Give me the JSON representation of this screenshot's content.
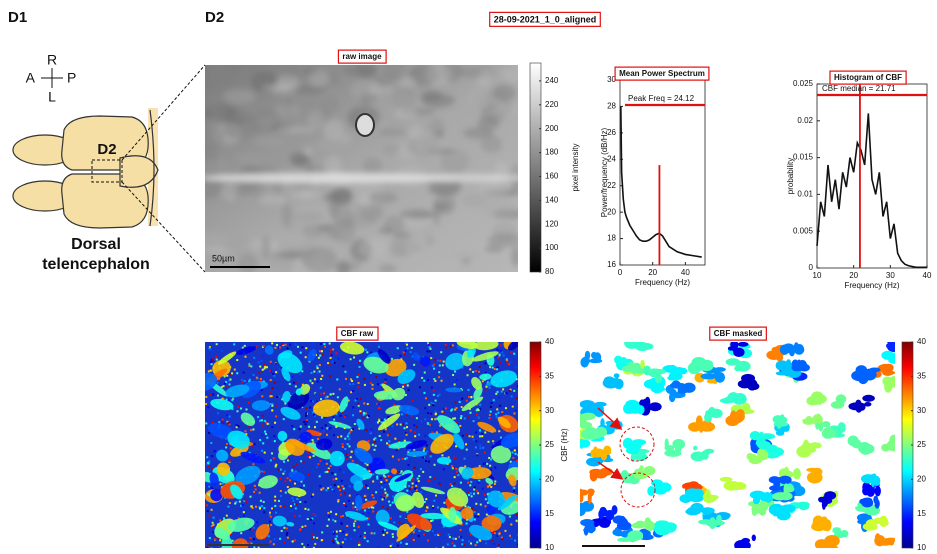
{
  "panel_labels": [
    "D1",
    "D2"
  ],
  "figure_title": "28-09-2021_1_0_aligned",
  "compass": {
    "top": "R",
    "left": "A",
    "right": "P",
    "bottom": "L"
  },
  "brain": {
    "region_label": "D2",
    "caption": [
      "Dorsal",
      "telencephalon"
    ]
  },
  "images": {
    "raw": {
      "title": "raw image",
      "scale_bar": "50µm",
      "colorbar": {
        "label": "pixel intensity",
        "lim": [
          80,
          255
        ],
        "ticks": [
          80,
          100,
          120,
          140,
          160,
          180,
          200,
          220,
          240
        ]
      }
    },
    "cbf_raw": {
      "title": "CBF raw",
      "colorbar": {
        "label": "CBF (Hz)",
        "lim": [
          10,
          40
        ],
        "ticks": [
          10,
          15,
          20,
          25,
          30,
          35,
          40
        ]
      }
    },
    "cbf_masked": {
      "title": "CBF masked",
      "colorbar": {
        "lim": [
          10,
          40
        ],
        "ticks": [
          10,
          15,
          20,
          25,
          30,
          35,
          40
        ]
      }
    }
  },
  "chart_data": [
    {
      "type": "line",
      "title": "Mean Power Spectrum",
      "xlabel": "Frequency (Hz)",
      "ylabel": "Power/frequency (dB/Hz)",
      "x": [
        0.5,
        1,
        2,
        3,
        4,
        6,
        8,
        10,
        12,
        14,
        16,
        18,
        20,
        22,
        24,
        26,
        28,
        30,
        35,
        40,
        45,
        50
      ],
      "values": [
        28,
        23,
        21,
        20,
        19.6,
        19,
        18.6,
        18.2,
        17.9,
        17.8,
        17.8,
        17.9,
        18.1,
        18.3,
        18.4,
        18.2,
        17.8,
        17.4,
        17,
        16.8,
        16.7,
        16.6
      ],
      "color": "#111111",
      "xlim": [
        0,
        52
      ],
      "xticks": [
        0,
        20,
        40
      ],
      "ylim": [
        16,
        30
      ],
      "yticks": [
        16,
        18,
        20,
        22,
        24,
        26,
        28,
        30
      ],
      "marker": {
        "value": 24.12,
        "label": "Peak Freq = 24.12",
        "color": "#e01010"
      }
    },
    {
      "type": "line",
      "title": "Histogram of CBF",
      "xlabel": "Frequency (Hz)",
      "ylabel": "probability",
      "x": [
        10,
        11,
        12,
        13,
        14,
        15,
        16,
        17,
        18,
        19,
        20,
        21,
        22,
        23,
        24,
        25,
        26,
        27,
        28,
        29,
        30,
        31,
        32,
        33,
        34,
        35,
        36,
        37,
        38,
        39,
        40
      ],
      "values": [
        0.003,
        0.009,
        0.007,
        0.014,
        0.009,
        0.012,
        0.008,
        0.013,
        0.011,
        0.015,
        0.013,
        0.017,
        0.016,
        0.014,
        0.021,
        0.012,
        0.01,
        0.013,
        0.007,
        0.009,
        0.004,
        0.006,
        0.002,
        0.001,
        0.0005,
        0.0003,
        0.0002,
        0.0001,
        0.0001,
        0.0001,
        0.0001
      ],
      "color": "#111111",
      "xlim": [
        10,
        40
      ],
      "xticks": [
        10,
        20,
        30,
        40
      ],
      "ylim": [
        0,
        0.025
      ],
      "yticks": [
        0,
        0.005,
        0.01,
        0.015,
        0.02,
        0.025
      ],
      "marker": {
        "value": 21.71,
        "label": "CBF median = 21.71",
        "color": "#e01010"
      }
    }
  ]
}
